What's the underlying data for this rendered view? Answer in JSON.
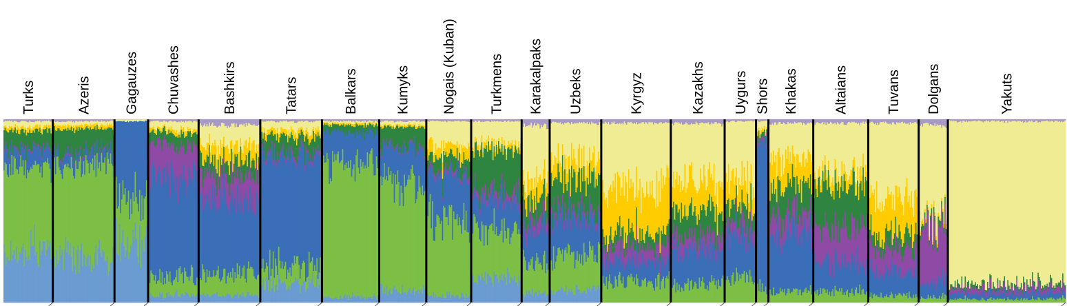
{
  "chart_data": {
    "type": "bar",
    "stacked": true,
    "normalized": true,
    "ylim": [
      0,
      1
    ],
    "grid": false,
    "legend": "none",
    "components": [
      {
        "key": "lightblue",
        "color": "#6a9bd1"
      },
      {
        "key": "lightgreen",
        "color": "#7dbf44"
      },
      {
        "key": "blue",
        "color": "#3a6fb8"
      },
      {
        "key": "purple",
        "color": "#8f4aa5"
      },
      {
        "key": "darkgreen",
        "color": "#2e8540"
      },
      {
        "key": "gold",
        "color": "#ffcc00"
      },
      {
        "key": "paleyellow",
        "color": "#f0ec94"
      },
      {
        "key": "lavender",
        "color": "#a898c8"
      }
    ],
    "populations": [
      {
        "name": "Turks",
        "n": 44,
        "proportions": [
          0.28,
          0.47,
          0.09,
          0.01,
          0.09,
          0.02,
          0.03,
          0.01
        ]
      },
      {
        "name": "Azeris",
        "n": 55,
        "proportions": [
          0.24,
          0.52,
          0.06,
          0.01,
          0.12,
          0.02,
          0.02,
          0.01
        ]
      },
      {
        "name": "Gagauzes",
        "n": 30,
        "proportions": [
          0.32,
          0.25,
          0.42,
          0.0,
          0.0,
          0.0,
          0.01,
          0.0
        ]
      },
      {
        "name": "Chuvashes",
        "n": 45,
        "proportions": [
          0.04,
          0.1,
          0.55,
          0.18,
          0.06,
          0.02,
          0.04,
          0.01
        ]
      },
      {
        "name": "Bashkirs",
        "n": 55,
        "proportions": [
          0.04,
          0.12,
          0.4,
          0.14,
          0.08,
          0.08,
          0.11,
          0.03
        ]
      },
      {
        "name": "Tatars",
        "n": 55,
        "proportions": [
          0.1,
          0.09,
          0.62,
          0.02,
          0.08,
          0.03,
          0.05,
          0.01
        ]
      },
      {
        "name": "Balkars",
        "n": 51,
        "proportions": [
          0.03,
          0.74,
          0.16,
          0.0,
          0.04,
          0.01,
          0.01,
          0.01
        ]
      },
      {
        "name": "Kumyks",
        "n": 42,
        "proportions": [
          0.07,
          0.59,
          0.19,
          0.01,
          0.1,
          0.01,
          0.02,
          0.01
        ]
      },
      {
        "name": "Nogais (Kuban)",
        "n": 40,
        "proportions": [
          0.04,
          0.4,
          0.25,
          0.02,
          0.08,
          0.06,
          0.14,
          0.01
        ]
      },
      {
        "name": "Turkmens",
        "n": 45,
        "proportions": [
          0.13,
          0.27,
          0.17,
          0.04,
          0.23,
          0.03,
          0.12,
          0.01
        ]
      },
      {
        "name": "Karakalpaks",
        "n": 25,
        "proportions": [
          0.05,
          0.17,
          0.19,
          0.06,
          0.11,
          0.1,
          0.29,
          0.03
        ]
      },
      {
        "name": "Uzbeks",
        "n": 46,
        "proportions": [
          0.07,
          0.2,
          0.2,
          0.04,
          0.17,
          0.1,
          0.2,
          0.02
        ]
      },
      {
        "name": "Kyrgyz",
        "n": 62,
        "proportions": [
          0.0,
          0.12,
          0.11,
          0.08,
          0.07,
          0.24,
          0.36,
          0.02
        ]
      },
      {
        "name": "Kazakhs",
        "n": 48,
        "proportions": [
          0.0,
          0.1,
          0.18,
          0.08,
          0.13,
          0.16,
          0.33,
          0.02
        ]
      },
      {
        "name": "Uygurs",
        "n": 28,
        "proportions": [
          0.0,
          0.14,
          0.21,
          0.07,
          0.1,
          0.13,
          0.34,
          0.01
        ]
      },
      {
        "name": "Shors",
        "n": 11,
        "proportions": [
          0.0,
          0.08,
          0.8,
          0.02,
          0.03,
          0.02,
          0.04,
          0.01
        ]
      },
      {
        "name": "Khakas",
        "n": 40,
        "proportions": [
          0.0,
          0.06,
          0.32,
          0.1,
          0.16,
          0.14,
          0.2,
          0.02
        ]
      },
      {
        "name": "Altaians",
        "n": 49,
        "proportions": [
          0.0,
          0.06,
          0.16,
          0.2,
          0.23,
          0.06,
          0.27,
          0.02
        ]
      },
      {
        "name": "Tuvans",
        "n": 45,
        "proportions": [
          0.0,
          0.04,
          0.14,
          0.13,
          0.08,
          0.19,
          0.4,
          0.02
        ]
      },
      {
        "name": "Dolgans",
        "n": 26,
        "proportions": [
          0.0,
          0.03,
          0.08,
          0.3,
          0.03,
          0.02,
          0.51,
          0.03
        ]
      },
      {
        "name": "Yakuts",
        "n": 105,
        "proportions": [
          0.0,
          0.02,
          0.03,
          0.03,
          0.02,
          0.0,
          0.89,
          0.01
        ]
      }
    ]
  }
}
